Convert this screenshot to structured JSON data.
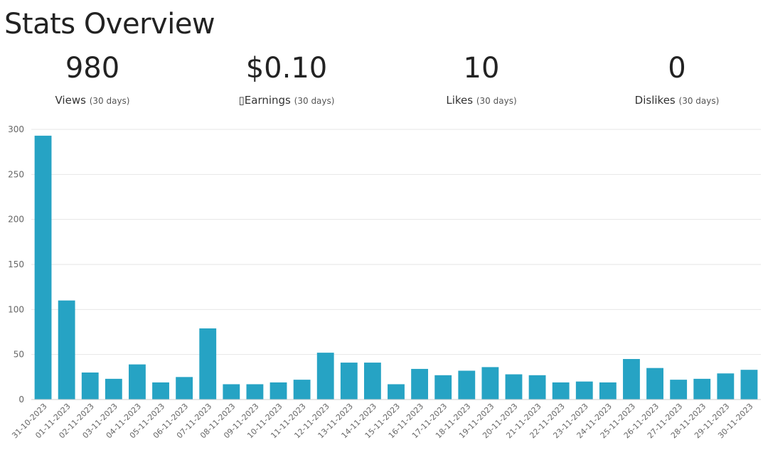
{
  "page": {
    "title": "Stats Overview"
  },
  "stats": [
    {
      "value": "980",
      "label": "Views",
      "period": "(30 days)"
    },
    {
      "value": "$0.10",
      "label": "▯Earnings",
      "period": "(30 days)"
    },
    {
      "value": "10",
      "label": "Likes",
      "period": "(30 days)"
    },
    {
      "value": "0",
      "label": "Dislikes",
      "period": "(30 days)"
    }
  ],
  "colors": {
    "bar": "#26a3c4",
    "grid": "#e6e6e6",
    "tick": "#666666"
  },
  "chart_data": {
    "type": "bar",
    "categories": [
      "31-10-2023",
      "01-11-2023",
      "02-11-2023",
      "03-11-2023",
      "04-11-2023",
      "05-11-2023",
      "06-11-2023",
      "07-11-2023",
      "08-11-2023",
      "09-11-2023",
      "10-11-2023",
      "11-11-2023",
      "12-11-2023",
      "13-11-2023",
      "14-11-2023",
      "15-11-2023",
      "16-11-2023",
      "17-11-2023",
      "18-11-2023",
      "19-11-2023",
      "20-11-2023",
      "21-11-2023",
      "22-11-2023",
      "23-11-2023",
      "24-11-2023",
      "25-11-2023",
      "26-11-2023",
      "27-11-2023",
      "28-11-2023",
      "29-11-2023",
      "30-11-2023"
    ],
    "values": [
      293,
      110,
      30,
      23,
      39,
      19,
      25,
      79,
      17,
      17,
      19,
      22,
      52,
      41,
      41,
      17,
      34,
      27,
      32,
      36,
      28,
      27,
      19,
      20,
      19,
      45,
      35,
      22,
      23,
      29,
      33
    ],
    "yticks": [
      0,
      50,
      100,
      150,
      200,
      250,
      300
    ],
    "ylim": [
      0,
      300
    ],
    "grid": true
  }
}
